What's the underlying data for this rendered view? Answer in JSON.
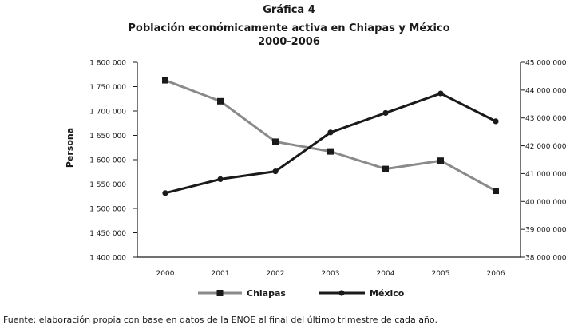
{
  "header": {
    "figure_label": "Gráfica 4",
    "title_line1": "Población económicamente activa en Chiapas y México",
    "title_line2": "2000-2006"
  },
  "footer": {
    "source": "Fuente: elaboración propia con base en datos de la ENOE al final del último trimestre de cada año."
  },
  "colors": {
    "chiapas": "#8a8a8a",
    "mexico": "#1a1a1a",
    "axis": "#1a1a1a"
  },
  "chart_data": {
    "type": "line",
    "ylabel": "Persona",
    "x": [
      "2000",
      "2001",
      "2002",
      "2003",
      "2004",
      "2005",
      "2006"
    ],
    "y_left": {
      "min": 1400000,
      "max": 1800000,
      "step": 50000,
      "ticks": [
        "1 400 000",
        "1 450 000",
        "1 500 000",
        "1 550 000",
        "1 600 000",
        "1 650 000",
        "1 700 000",
        "1 750 000",
        "1 800 000"
      ]
    },
    "y_right": {
      "min": 38000000,
      "max": 45000000,
      "step": 1000000,
      "ticks": [
        "38 000 000",
        "39 000 000",
        "40 000 000",
        "41 000 000",
        "42 000 000",
        "43 000 000",
        "44 000 000",
        "45 000 000"
      ]
    },
    "series": [
      {
        "name": "Chiapas",
        "axis": "left",
        "marker": "square",
        "color": "#8a8a8a",
        "values": [
          1763000,
          1720000,
          1637000,
          1617000,
          1581000,
          1598000,
          1536000
        ]
      },
      {
        "name": "México",
        "axis": "right",
        "marker": "circle",
        "color": "#1a1a1a",
        "values": [
          40300000,
          40800000,
          41080000,
          42480000,
          43180000,
          43880000,
          42880000
        ]
      }
    ],
    "legend_position": "bottom",
    "grid": false
  }
}
